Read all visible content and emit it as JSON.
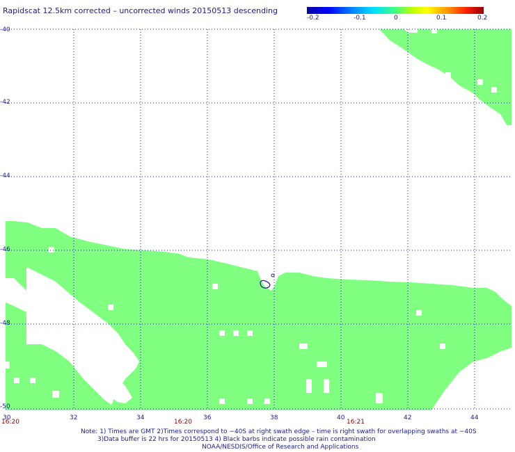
{
  "title": "Rapidscat 12.5km corrected – uncorrected winds 20150513 descending",
  "colorbar": {
    "labels": [
      "-0.2",
      "-0.1",
      "0",
      "0.1",
      "0.2"
    ],
    "label_values": [
      -0.2,
      -0.1,
      0,
      0.1,
      0.2
    ]
  },
  "lat_labels": [
    "-40",
    "-42",
    "-44",
    "-46",
    "-48",
    "-50"
  ],
  "lon_labels": [
    "30",
    "32",
    "34",
    "36",
    "38",
    "40",
    "42",
    "44"
  ],
  "time_labels": [
    "16:20",
    "16:20",
    "16:21"
  ],
  "notes": {
    "line1": "Note: 1) Times are GMT 2)Times correspond to −40S at right swath edge – time is right swath for overlapping swaths at −40S",
    "line2": "3)Data buffer is 22 hrs for 20150513 4) Black barbs indicate possible rain contamination",
    "line3": "NOAA/NESDIS/Office of Research and Applications"
  },
  "colors": {
    "swath": "#80ff80",
    "grid": "#1a1a8c",
    "text": "#1a1a8c",
    "time": "#8b0000"
  },
  "chart_data": {
    "type": "map",
    "x_range_lon": [
      30,
      45
    ],
    "y_range_lat": [
      -50,
      -40
    ],
    "grid": true,
    "swath_value": 0
  }
}
